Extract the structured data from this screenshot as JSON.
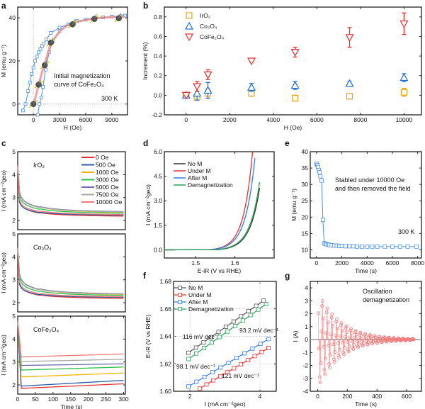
{
  "panels": {
    "a": "a",
    "b": "b",
    "c": "c",
    "d": "d",
    "e": "e",
    "f": "f",
    "g": "g"
  },
  "chart_data": [
    {
      "id": "a",
      "type": "line",
      "title": "",
      "xlabel": "H (Oe)",
      "ylabel": "M (emu g⁻¹)",
      "xlim": [
        -1800,
        10800
      ],
      "ylim": [
        -5,
        45
      ],
      "xticks": [
        0,
        3000,
        6000,
        9000
      ],
      "yticks": [
        0,
        20,
        40
      ],
      "annotations": [
        "Initial magnetization",
        "curve of CoFe₂O₄",
        "300 K"
      ],
      "series": [
        {
          "name": "hysteresis-upper",
          "color": "#4a90e2",
          "x": [
            -1200,
            -900,
            -600,
            -400,
            -200,
            0,
            200,
            400,
            600,
            800,
            1000,
            1200,
            1500,
            2000,
            3000,
            4000,
            5000,
            6000,
            7000,
            8000,
            9000,
            10000,
            10500
          ],
          "y": [
            -3,
            0,
            6,
            10,
            14,
            17,
            20,
            22,
            24,
            25.5,
            27,
            28,
            30,
            33,
            35.5,
            37,
            38.5,
            39.2,
            39.8,
            40.2,
            40.6,
            40.8,
            41
          ]
        },
        {
          "name": "hysteresis-lower",
          "color": "#4a90e2",
          "x": [
            500,
            700,
            900,
            1100,
            1400,
            1800,
            2200,
            3000,
            4000,
            5000,
            7000,
            9000,
            10500
          ],
          "y": [
            -5,
            0,
            3,
            8,
            16,
            24,
            29,
            34,
            37,
            38.5,
            40,
            40.5,
            41
          ]
        },
        {
          "name": "initial-magnetization",
          "color": "#f08a8a",
          "x": [
            0,
            300,
            600,
            1000,
            1400,
            1900,
            2500,
            3200,
            4000,
            5000,
            7000,
            9000,
            10500
          ],
          "y": [
            0,
            4,
            9,
            15,
            20,
            27,
            31,
            34.5,
            36.8,
            38.2,
            39.8,
            40.3,
            40.6
          ]
        }
      ],
      "spin_markers": {
        "x": [
          0,
          600,
          1300,
          2000,
          4500,
          7000,
          9800
        ],
        "y": [
          0,
          9,
          18,
          28.5,
          37,
          39.5,
          39.8
        ]
      }
    },
    {
      "id": "b",
      "type": "scatter",
      "xlabel": "H (Oe)",
      "ylabel": "Increment (%)",
      "xlim": [
        -1000,
        10800
      ],
      "ylim": [
        -0.2,
        0.9
      ],
      "xticks": [
        0,
        2000,
        4000,
        6000,
        8000,
        10000
      ],
      "yticks": [
        -0.2,
        0.0,
        0.2,
        0.4,
        0.6,
        0.8
      ],
      "legend": "top-left",
      "series": [
        {
          "name": "IrO₂",
          "color": "#e8a317",
          "marker": "square",
          "x": [
            0,
            500,
            1000,
            3000,
            5000,
            7500,
            10000
          ],
          "y": [
            0.0,
            -0.02,
            0.02,
            0.02,
            -0.03,
            -0.01,
            0.03
          ],
          "err": [
            0.01,
            0.03,
            0.05,
            0.03,
            0.03,
            0.02,
            0.04
          ]
        },
        {
          "name": "Co₃O₄",
          "color": "#1f6fd1",
          "marker": "triangle-up",
          "x": [
            0,
            500,
            1000,
            3000,
            5000,
            7500,
            10000
          ],
          "y": [
            0.0,
            0.02,
            0.05,
            0.08,
            0.1,
            0.12,
            0.18
          ],
          "err": [
            0.02,
            0.07,
            0.08,
            0.04,
            0.04,
            0.02,
            0.04
          ]
        },
        {
          "name": "CoFe₂O₄",
          "color": "#e8312f",
          "marker": "triangle-down",
          "x": [
            0,
            500,
            1000,
            3000,
            5000,
            7500,
            10000
          ],
          "y": [
            0.0,
            0.09,
            0.21,
            0.35,
            0.44,
            0.59,
            0.73
          ],
          "err": [
            0.01,
            0.05,
            0.05,
            0.01,
            0.05,
            0.1,
            0.11
          ]
        }
      ]
    },
    {
      "id": "c",
      "type": "line",
      "xlabel": "Time (s)",
      "ylabel": "I (mA cm⁻²geo)",
      "xlim": [
        0,
        305
      ],
      "ylim": [
        1.6,
        5
      ],
      "xticks": [
        0,
        50,
        100,
        150,
        200,
        250,
        300
      ],
      "yticks": [
        2,
        3,
        4,
        5
      ],
      "legend": "top-right",
      "legend_entries": [
        "0 Oe",
        "500 Oe",
        "1000 Oe",
        "3000 Oe",
        "5000 Oe",
        "7500 Oe",
        "10000 Oe"
      ],
      "colors": [
        "#e8312f",
        "#2a5da8",
        "#f0b400",
        "#2fbf4a",
        "#6b6fae",
        "#a8a8a8",
        "#f07a7a"
      ],
      "subplots": [
        {
          "label": "IrO₂",
          "end_values": [
            2.13,
            2.18,
            2.27,
            2.24,
            2.3,
            2.29,
            2.2
          ],
          "mid_values": [
            2.35,
            2.37,
            2.6,
            2.52,
            2.62,
            2.6,
            2.42
          ]
        },
        {
          "label": "Co₃O₄",
          "end_values": [
            2.13,
            2.18,
            2.27,
            2.24,
            2.3,
            2.29,
            2.2
          ],
          "mid_values": [
            2.35,
            2.37,
            2.6,
            2.52,
            2.62,
            2.6,
            2.42
          ]
        },
        {
          "label": "CoFe₂O₄",
          "start_values": [
            1.85,
            1.95,
            2.35,
            2.65,
            2.85,
            3.02,
            3.22
          ],
          "end_values": [
            2.05,
            2.2,
            2.52,
            2.78,
            2.92,
            3.12,
            3.35
          ]
        }
      ]
    },
    {
      "id": "d",
      "type": "line",
      "xlabel": "E-iR (V vs RHE)",
      "ylabel": "I (mA cm⁻²geo)",
      "xlim": [
        1.42,
        1.7
      ],
      "ylim": [
        -0.5,
        6.0
      ],
      "xticks": [
        1.5,
        1.6
      ],
      "yticks": [
        0.0,
        1.5,
        3.0,
        4.5,
        6.0
      ],
      "legend": "top-left",
      "series": [
        {
          "name": "No M",
          "color": "#333333",
          "onset": 1.555,
          "end_x": 1.665,
          "end_y": 4.1
        },
        {
          "name": "Under M",
          "color": "#e8312f",
          "onset": 1.535,
          "end_x": 1.645,
          "end_y": 6.0
        },
        {
          "name": "After M",
          "color": "#2f7be8",
          "onset": 1.537,
          "end_x": 1.651,
          "end_y": 5.6
        },
        {
          "name": "Demagnetization",
          "color": "#2aa35a",
          "onset": 1.55,
          "end_x": 1.664,
          "end_y": 4.3
        }
      ]
    },
    {
      "id": "e",
      "type": "line",
      "xlabel": "Time (s)",
      "ylabel": "M (emu g⁻¹)",
      "xlim": [
        -500,
        8300
      ],
      "ylim": [
        7.5,
        40
      ],
      "xticks": [
        0,
        2000,
        4000,
        6000,
        8000
      ],
      "yticks": [
        10,
        15,
        20,
        25,
        30,
        35,
        40
      ],
      "annotations": [
        "Stabled under 10000 Oe",
        "and then removed the field",
        "300 K"
      ],
      "series": [
        {
          "name": "M",
          "color": "#4a90e2",
          "x": [
            0,
            60,
            120,
            180,
            240,
            300,
            400,
            500,
            600,
            700,
            800,
            900,
            1000,
            1200,
            1400,
            1600,
            1800,
            2000,
            2300,
            2600,
            2900,
            3200,
            3600,
            4000,
            4400,
            4800,
            5400,
            6000,
            6600,
            7200,
            7900
          ],
          "y": [
            36.3,
            35.9,
            35.3,
            34.4,
            33.7,
            32.5,
            31.2,
            19.2,
            12.0,
            11.8,
            11.7,
            11.6,
            11.5,
            11.4,
            11.3,
            11.3,
            11.2,
            11.2,
            11.1,
            11.1,
            11.1,
            11.0,
            11.0,
            11.0,
            11.0,
            11.0,
            11.0,
            11.0,
            11.0,
            11.0,
            11.0
          ]
        }
      ]
    },
    {
      "id": "f",
      "type": "line",
      "xlabel": "I (mA cm⁻²geo)",
      "ylabel": "E-iR (V vs RHE)",
      "xscale": "log",
      "xlim": [
        1.7,
        4.7
      ],
      "ylim": [
        1.6,
        1.68
      ],
      "xticks": [
        2,
        4
      ],
      "yticks": [
        1.6,
        1.62,
        1.64,
        1.66,
        1.68
      ],
      "legend": "top-left",
      "series": [
        {
          "name": "No M",
          "color": "#555555",
          "tafel": "116 mV dec⁻¹",
          "x0": 1.97,
          "y0": 1.628,
          "x1": 4.15,
          "y1": 1.666
        },
        {
          "name": "Under M",
          "color": "#e8312f",
          "tafel": "93.2 mV dec⁻¹",
          "x0": 2.2,
          "y0": 1.602,
          "x1": 4.35,
          "y1": 1.6315
        },
        {
          "name": "After M",
          "color": "#2f7be8",
          "tafel": "98.1 mV dec⁻¹",
          "x0": 1.97,
          "y0": 1.6035,
          "x1": 4.35,
          "y1": 1.638
        },
        {
          "name": "Demagnetization",
          "color": "#2aa35a",
          "tafel": "121 mV dec⁻¹",
          "x0": 1.97,
          "y0": 1.6235,
          "x1": 4.25,
          "y1": 1.6635
        }
      ]
    },
    {
      "id": "g",
      "type": "line",
      "xlabel": "Time (s)",
      "ylabel": "I (A)",
      "xlim": [
        -50,
        700
      ],
      "ylim": [
        -4,
        4.5
      ],
      "xticks": [
        0,
        200,
        400,
        600
      ],
      "yticks": [
        -4,
        -3,
        -2,
        -1,
        0,
        1,
        2,
        3,
        4
      ],
      "annotations": [
        "Oscillation",
        "demagnetization"
      ],
      "series": [
        {
          "name": "I",
          "color": "#f07a7a",
          "amplitude_start": 3.8,
          "t_end": 650,
          "period": 32
        }
      ]
    }
  ]
}
